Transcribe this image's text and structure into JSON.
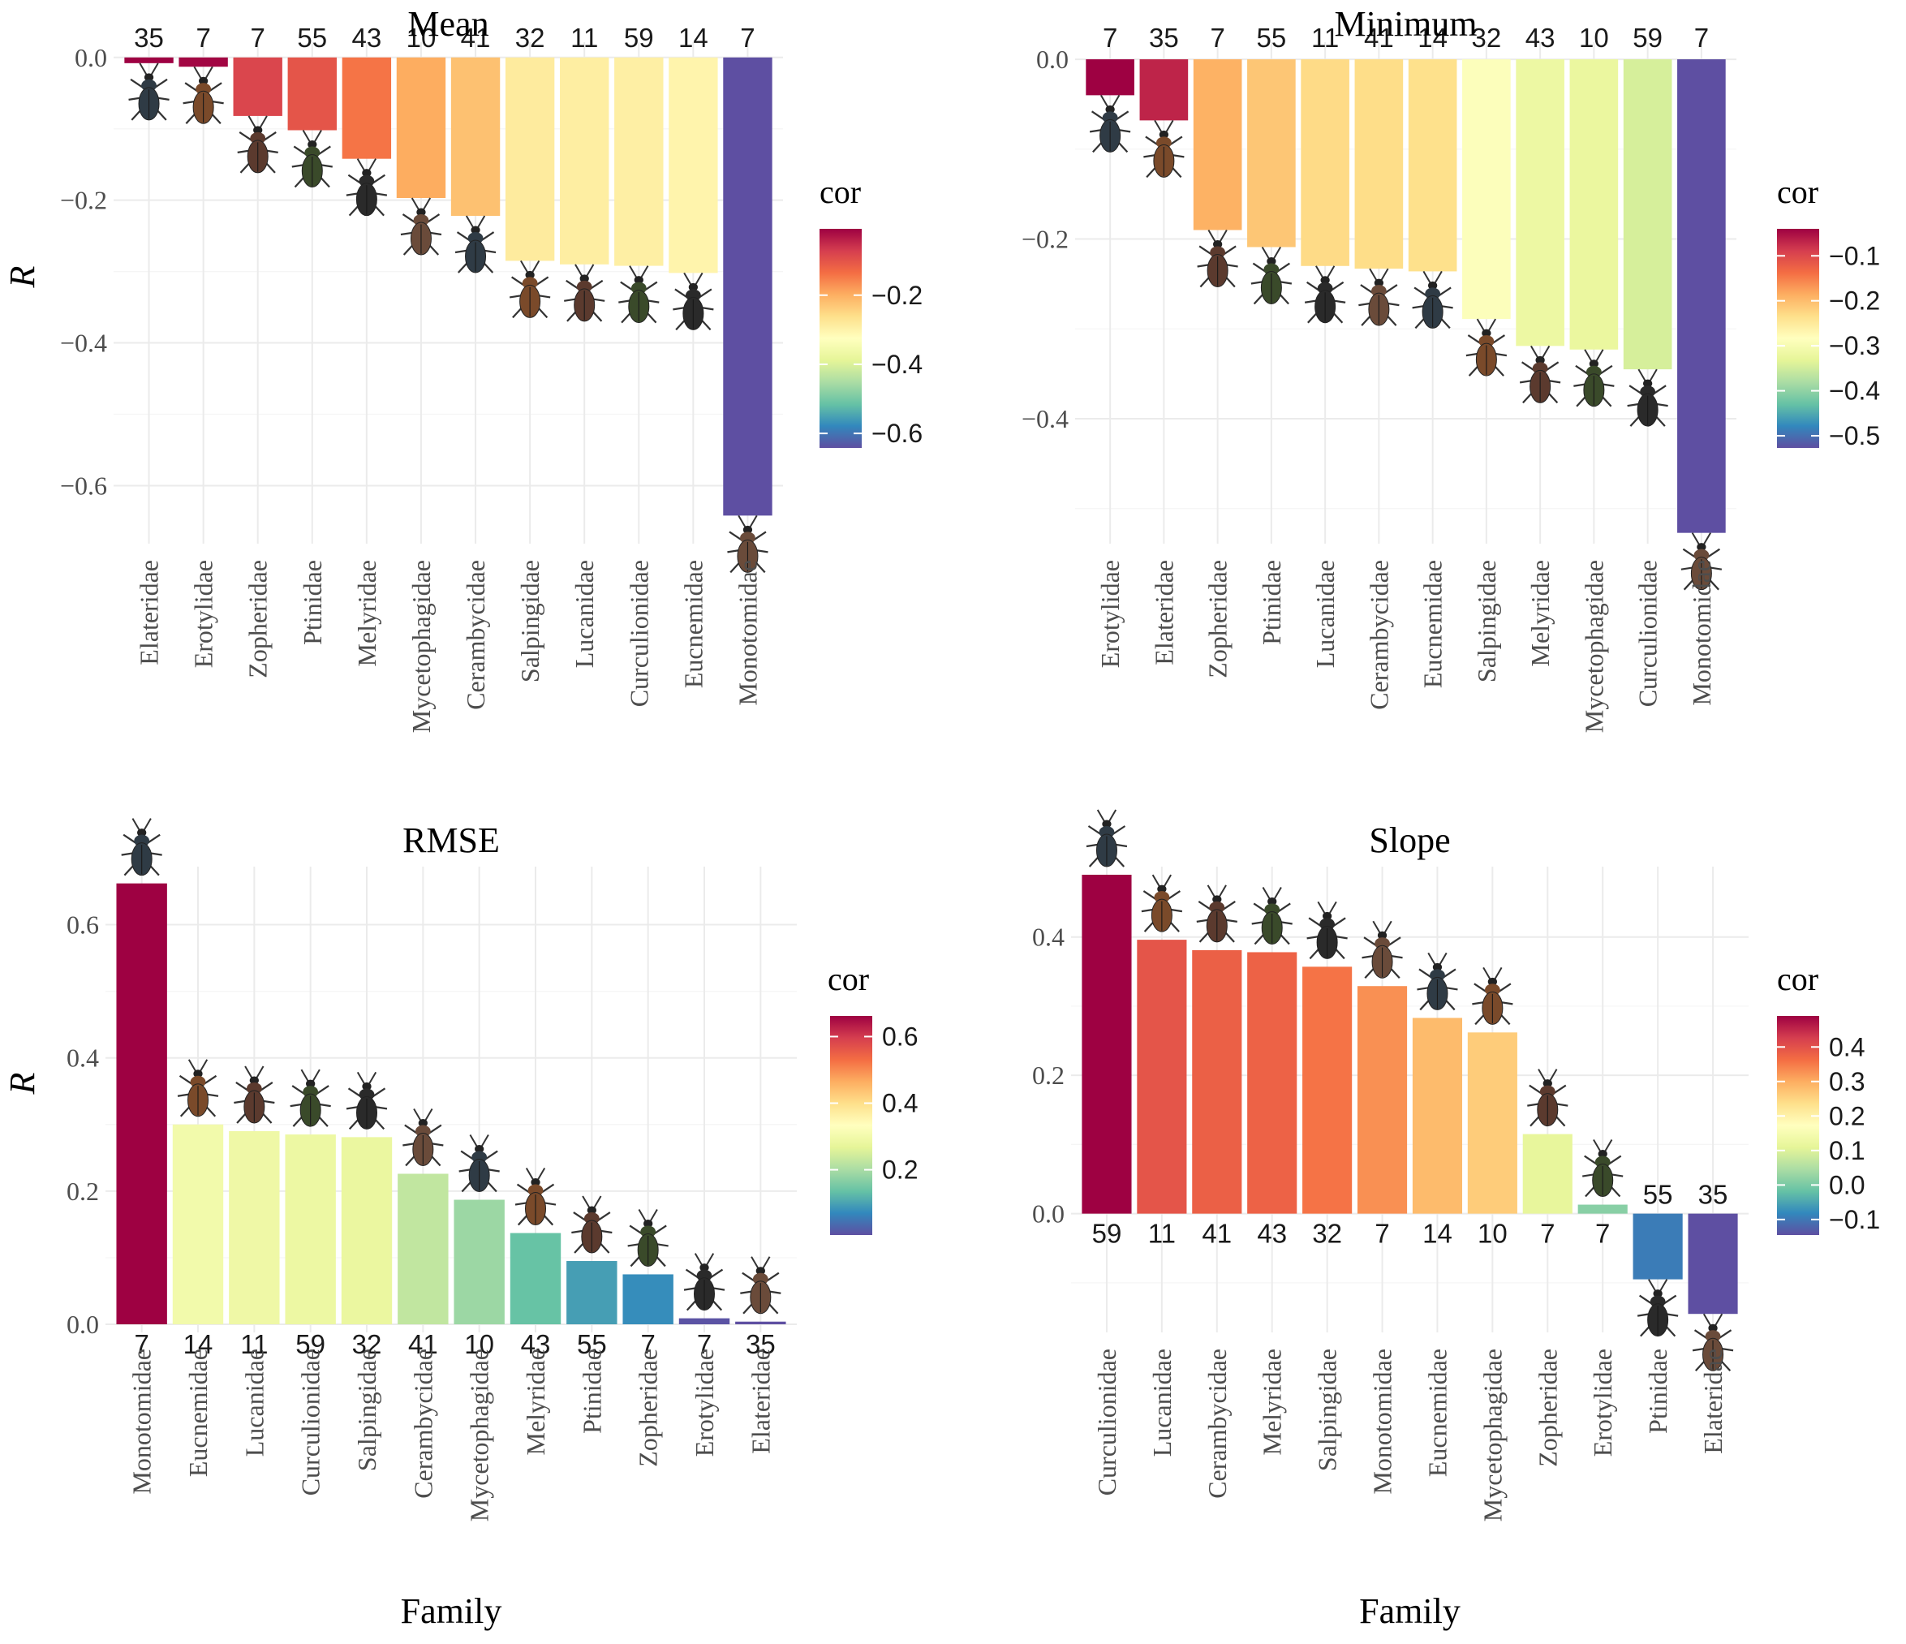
{
  "chart_data": [
    {
      "type": "bar",
      "title": "Mean",
      "xlabel": "",
      "ylabel": "R",
      "ylim": [
        -0.67,
        0.01
      ],
      "yticks": [
        0.0,
        -0.2,
        -0.4,
        -0.6
      ],
      "ytick_labels": [
        "0.0",
        "−0.2",
        "−0.4",
        "−0.6"
      ],
      "categories": [
        "Elateridae",
        "Erotylidae",
        "Zopheridae",
        "Ptinidae",
        "Melyridae",
        "Mycetophagidae",
        "Cerambycidae",
        "Salpingidae",
        "Lucanidae",
        "Curculionidae",
        "Eucnemidae",
        "Monotomidae"
      ],
      "values": [
        -0.008,
        -0.013,
        -0.082,
        -0.102,
        -0.142,
        -0.197,
        -0.222,
        -0.285,
        -0.29,
        -0.292,
        -0.302,
        -0.642
      ],
      "n_labels": [
        "35",
        "7",
        "7",
        "55",
        "43",
        "10",
        "41",
        "32",
        "11",
        "59",
        "14",
        "7"
      ],
      "legend": {
        "title": "cor",
        "range": [
          -0.642,
          -0.008
        ],
        "ticks": [
          -0.2,
          -0.4,
          -0.6
        ],
        "tick_labels": [
          "−0.2",
          "−0.4",
          "−0.6"
        ],
        "placement": "right"
      }
    },
    {
      "type": "bar",
      "title": "Minimum",
      "xlabel": "",
      "ylabel": "",
      "ylim": [
        -0.53,
        0.01
      ],
      "yticks": [
        0.0,
        -0.2,
        -0.4
      ],
      "ytick_labels": [
        "0.0",
        "−0.2",
        "−0.4"
      ],
      "categories": [
        "Erotylidae",
        "Elateridae",
        "Zopheridae",
        "Ptinidae",
        "Lucanidae",
        "Cerambycidae",
        "Eucnemidae",
        "Salpingidae",
        "Melyridae",
        "Mycetophagidae",
        "Curculionidae",
        "Monotomidae"
      ],
      "values": [
        -0.04,
        -0.068,
        -0.19,
        -0.209,
        -0.23,
        -0.233,
        -0.236,
        -0.289,
        -0.319,
        -0.323,
        -0.345,
        -0.527
      ],
      "n_labels": [
        "7",
        "35",
        "7",
        "55",
        "11",
        "41",
        "14",
        "32",
        "43",
        "10",
        "59",
        "7"
      ],
      "legend": {
        "title": "cor",
        "range": [
          -0.527,
          -0.04
        ],
        "ticks": [
          -0.1,
          -0.2,
          -0.3,
          -0.4,
          -0.5
        ],
        "tick_labels": [
          "−0.1",
          "−0.2",
          "−0.3",
          "−0.4",
          "−0.5"
        ],
        "placement": "right"
      }
    },
    {
      "type": "bar",
      "title": "RMSE",
      "xlabel": "Family",
      "ylabel": "R",
      "ylim": [
        0.0,
        0.675
      ],
      "yticks": [
        0.0,
        0.2,
        0.4,
        0.6
      ],
      "ytick_labels": [
        "0.0",
        "0.2",
        "0.4",
        "0.6"
      ],
      "categories": [
        "Monotomidae",
        "Eucnemidae",
        "Lucanidae",
        "Curculionidae",
        "Salpingidae",
        "Cerambycidae",
        "Mycetophagidae",
        "Melyridae",
        "Ptinidae",
        "Zopheridae",
        "Erotylidae",
        "Elateridae"
      ],
      "values": [
        0.662,
        0.3,
        0.29,
        0.285,
        0.281,
        0.226,
        0.187,
        0.137,
        0.095,
        0.075,
        0.009,
        0.004
      ],
      "n_labels": [
        "7",
        "14",
        "11",
        "59",
        "32",
        "41",
        "10",
        "43",
        "55",
        "7",
        "7",
        "35"
      ],
      "legend": {
        "title": "cor",
        "range": [
          0.004,
          0.662
        ],
        "ticks": [
          0.6,
          0.4,
          0.2
        ],
        "tick_labels": [
          "0.6",
          "0.4",
          "0.2"
        ],
        "placement": "right"
      }
    },
    {
      "type": "bar",
      "title": "Slope",
      "xlabel": "Family",
      "ylabel": "",
      "ylim": [
        -0.16,
        0.49
      ],
      "yticks": [
        0.0,
        0.2,
        0.4
      ],
      "ytick_labels": [
        "0.0",
        "0.2",
        "0.4"
      ],
      "categories": [
        "Curculionidae",
        "Lucanidae",
        "Cerambycidae",
        "Melyridae",
        "Salpingidae",
        "Monotomidae",
        "Eucnemidae",
        "Mycetophagidae",
        "Zopheridae",
        "Erotylidae",
        "Ptinidae",
        "Elateridae"
      ],
      "values": [
        0.49,
        0.396,
        0.381,
        0.378,
        0.357,
        0.329,
        0.283,
        0.262,
        0.115,
        0.013,
        -0.095,
        -0.145
      ],
      "n_labels": [
        "59",
        "11",
        "41",
        "43",
        "32",
        "7",
        "14",
        "10",
        "7",
        "7",
        "55",
        "35"
      ],
      "legend": {
        "title": "cor",
        "range": [
          -0.145,
          0.49
        ],
        "ticks": [
          0.4,
          0.3,
          0.2,
          0.1,
          0.0,
          -0.1
        ],
        "tick_labels": [
          "0.4",
          "0.3",
          "0.2",
          "0.1",
          "0.0",
          "−0.1"
        ],
        "placement": "right"
      }
    }
  ]
}
